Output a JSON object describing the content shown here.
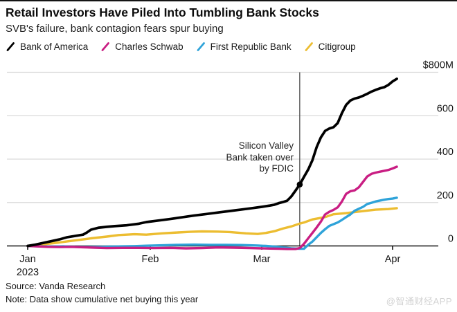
{
  "header": {
    "title": "Retail Investors Have Piled Into Tumbling Bank Stocks",
    "subtitle": "SVB's failure, bank contagion fears spur buying"
  },
  "footer": {
    "source": "Source: Vanda Research",
    "note": "Note: Data show cumulative net buying this year",
    "watermark": "@智通财经APP"
  },
  "legend": {
    "swatch_icon": "slash-icon",
    "items": [
      {
        "label": "Bank of America",
        "color": "#000000"
      },
      {
        "label": "Charles Schwab",
        "color": "#c91e83"
      },
      {
        "label": "First Republic Bank",
        "color": "#2fa3d9"
      },
      {
        "label": "Citigroup",
        "color": "#ecbd31"
      }
    ]
  },
  "chart_data": {
    "type": "line",
    "title": "Retail Investors Have Piled Into Tumbling Bank Stocks",
    "subtitle": "SVB's failure, bank contagion fears spur buying",
    "unit": "millions USD, cumulative net buying since Jan 1 2023",
    "ylim": [
      0,
      800
    ],
    "grid": "horizontal",
    "legend_position": "top",
    "y_ticks": [
      {
        "label": "$800M",
        "value": 800
      },
      {
        "label": "600",
        "value": 600
      },
      {
        "label": "400",
        "value": 400
      },
      {
        "label": "200",
        "value": 200
      },
      {
        "label": "0",
        "value": 0
      }
    ],
    "x_ticks": [
      {
        "label": "Jan",
        "sublabel": "2023",
        "day": 0
      },
      {
        "label": "Feb",
        "sublabel": "",
        "day": 31
      },
      {
        "label": "Mar",
        "sublabel": "",
        "day": 59
      },
      {
        "label": "Apr",
        "sublabel": "",
        "day": 90
      }
    ],
    "annotation": {
      "text_lines": [
        "Silicon Valley",
        "Bank taken over",
        "by FDIC"
      ],
      "day": 68,
      "marker_value": 283
    },
    "series": [
      {
        "name": "Bank of America",
        "color": "#000000",
        "points": [
          [
            0,
            0
          ],
          [
            2,
            6
          ],
          [
            4,
            14
          ],
          [
            6,
            22
          ],
          [
            8,
            30
          ],
          [
            10,
            40
          ],
          [
            12,
            46
          ],
          [
            14,
            52
          ],
          [
            15,
            62
          ],
          [
            16,
            75
          ],
          [
            18,
            84
          ],
          [
            20,
            88
          ],
          [
            22,
            91
          ],
          [
            25,
            95
          ],
          [
            28,
            102
          ],
          [
            30,
            110
          ],
          [
            33,
            117
          ],
          [
            36,
            124
          ],
          [
            39,
            132
          ],
          [
            42,
            140
          ],
          [
            45,
            147
          ],
          [
            48,
            154
          ],
          [
            51,
            161
          ],
          [
            54,
            168
          ],
          [
            57,
            175
          ],
          [
            59,
            180
          ],
          [
            61,
            186
          ],
          [
            62,
            190
          ],
          [
            63,
            197
          ],
          [
            64,
            202
          ],
          [
            65,
            208
          ],
          [
            66,
            228
          ],
          [
            67,
            255
          ],
          [
            68,
            283
          ],
          [
            69,
            318
          ],
          [
            70,
            352
          ],
          [
            71,
            395
          ],
          [
            72,
            455
          ],
          [
            73,
            500
          ],
          [
            74,
            530
          ],
          [
            75,
            541
          ],
          [
            76,
            547
          ],
          [
            77,
            566
          ],
          [
            78,
            612
          ],
          [
            79,
            650
          ],
          [
            80,
            670
          ],
          [
            81,
            679
          ],
          [
            82,
            684
          ],
          [
            83,
            692
          ],
          [
            84,
            701
          ],
          [
            85,
            711
          ],
          [
            86,
            719
          ],
          [
            87,
            726
          ],
          [
            88,
            731
          ],
          [
            89,
            742
          ],
          [
            90,
            758
          ],
          [
            91,
            770
          ]
        ]
      },
      {
        "name": "Charles Schwab",
        "color": "#c91e83",
        "points": [
          [
            0,
            0
          ],
          [
            2,
            -2
          ],
          [
            5,
            -4
          ],
          [
            8,
            -5
          ],
          [
            11,
            -4
          ],
          [
            14,
            -6
          ],
          [
            17,
            -8
          ],
          [
            20,
            -10
          ],
          [
            24,
            -9
          ],
          [
            28,
            -9
          ],
          [
            32,
            -10
          ],
          [
            36,
            -9
          ],
          [
            40,
            -11
          ],
          [
            44,
            -10
          ],
          [
            48,
            -7
          ],
          [
            52,
            -8
          ],
          [
            56,
            -10
          ],
          [
            59,
            -11
          ],
          [
            61,
            -12
          ],
          [
            63,
            -13
          ],
          [
            65,
            -14
          ],
          [
            67,
            -14
          ],
          [
            68,
            -10
          ],
          [
            69,
            10
          ],
          [
            70,
            35
          ],
          [
            71,
            60
          ],
          [
            72,
            85
          ],
          [
            73,
            112
          ],
          [
            74,
            145
          ],
          [
            75,
            157
          ],
          [
            76,
            166
          ],
          [
            77,
            178
          ],
          [
            78,
            205
          ],
          [
            79,
            240
          ],
          [
            80,
            252
          ],
          [
            81,
            256
          ],
          [
            82,
            270
          ],
          [
            83,
            295
          ],
          [
            84,
            320
          ],
          [
            85,
            332
          ],
          [
            86,
            338
          ],
          [
            87,
            342
          ],
          [
            88,
            346
          ],
          [
            89,
            350
          ],
          [
            90,
            357
          ],
          [
            91,
            365
          ]
        ]
      },
      {
        "name": "First Republic Bank",
        "color": "#2fa3d9",
        "points": [
          [
            0,
            0
          ],
          [
            3,
            -2
          ],
          [
            6,
            -3
          ],
          [
            9,
            -2
          ],
          [
            12,
            -4
          ],
          [
            15,
            -5
          ],
          [
            18,
            -4
          ],
          [
            21,
            -3
          ],
          [
            24,
            -2
          ],
          [
            27,
            -1
          ],
          [
            30,
            1
          ],
          [
            34,
            3
          ],
          [
            38,
            5
          ],
          [
            42,
            6
          ],
          [
            46,
            5
          ],
          [
            50,
            5
          ],
          [
            54,
            4
          ],
          [
            58,
            2
          ],
          [
            60,
            0
          ],
          [
            62,
            -3
          ],
          [
            64,
            -7
          ],
          [
            66,
            -11
          ],
          [
            68,
            -13
          ],
          [
            69,
            -13
          ],
          [
            70,
            5
          ],
          [
            71,
            20
          ],
          [
            72,
            40
          ],
          [
            73,
            60
          ],
          [
            74,
            77
          ],
          [
            75,
            92
          ],
          [
            76,
            100
          ],
          [
            77,
            108
          ],
          [
            78,
            120
          ],
          [
            79,
            133
          ],
          [
            80,
            145
          ],
          [
            81,
            162
          ],
          [
            82,
            171
          ],
          [
            83,
            180
          ],
          [
            84,
            193
          ],
          [
            85,
            199
          ],
          [
            86,
            205
          ],
          [
            87,
            209
          ],
          [
            88,
            213
          ],
          [
            89,
            216
          ],
          [
            90,
            218
          ],
          [
            91,
            222
          ]
        ]
      },
      {
        "name": "Citigroup",
        "color": "#ecbd31",
        "points": [
          [
            0,
            0
          ],
          [
            3,
            4
          ],
          [
            5,
            10
          ],
          [
            8,
            16
          ],
          [
            10,
            21
          ],
          [
            14,
            30
          ],
          [
            16,
            35
          ],
          [
            20,
            43
          ],
          [
            23,
            50
          ],
          [
            27,
            54
          ],
          [
            30,
            52
          ],
          [
            34,
            58
          ],
          [
            38,
            62
          ],
          [
            41,
            65
          ],
          [
            44,
            67
          ],
          [
            48,
            66
          ],
          [
            51,
            64
          ],
          [
            55,
            58
          ],
          [
            58,
            55
          ],
          [
            60,
            60
          ],
          [
            62,
            68
          ],
          [
            64,
            80
          ],
          [
            66,
            90
          ],
          [
            68,
            103
          ],
          [
            69,
            108
          ],
          [
            71,
            122
          ],
          [
            74,
            133
          ],
          [
            76,
            146
          ],
          [
            79,
            151
          ],
          [
            81,
            156
          ],
          [
            84,
            163
          ],
          [
            86,
            167
          ],
          [
            89,
            170
          ],
          [
            91,
            174
          ]
        ]
      }
    ]
  }
}
